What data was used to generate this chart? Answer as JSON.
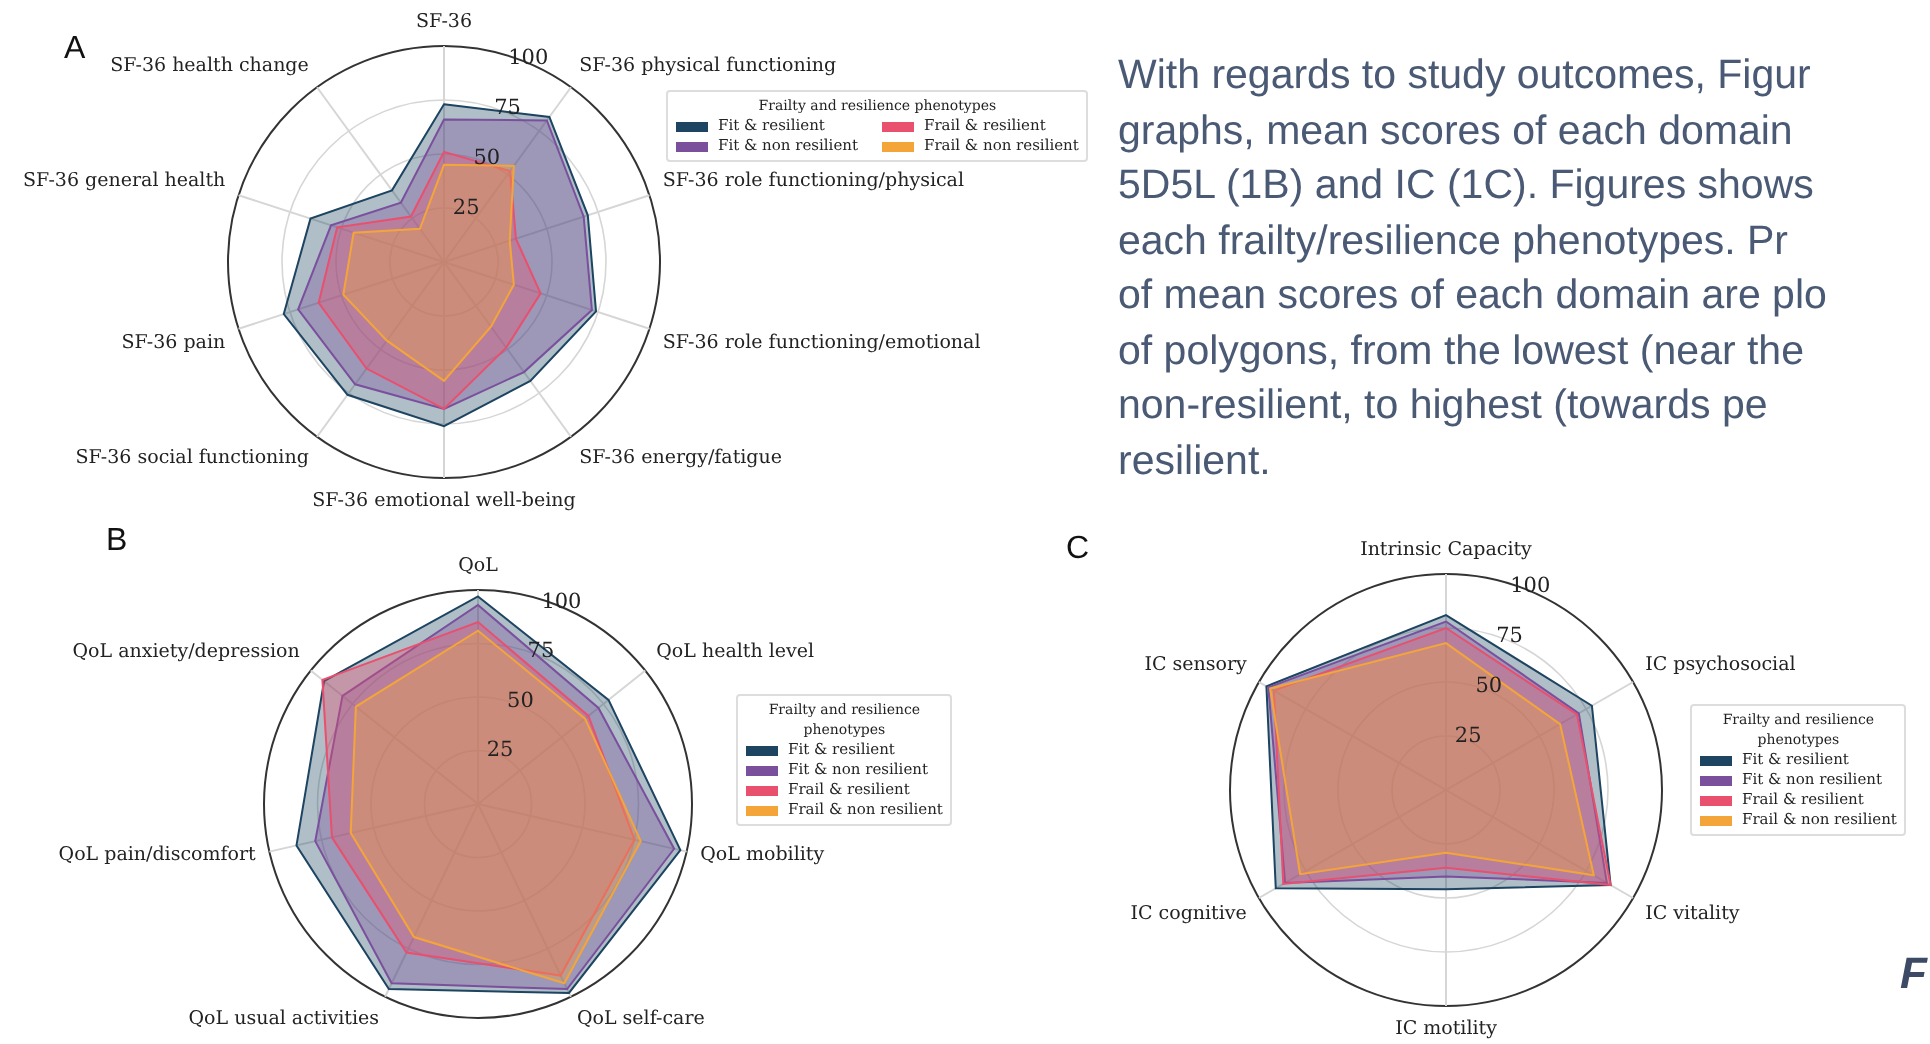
{
  "chart_data": [
    {
      "type": "radar",
      "title": "A",
      "categories": [
        "SF-36",
        "SF-36 physical functioning",
        "SF-36 role functioning/physical",
        "SF-36 role functioning/emotional",
        "SF-36 energy/fatigue",
        "SF-36 emotional well-being",
        "SF-36 social functioning",
        "SF-36 pain",
        "SF-36 general health",
        "SF-36 health change"
      ],
      "series": [
        {
          "name": "Fit & resilient",
          "color": "#1d4461",
          "values": [
            73,
            83,
            70,
            74,
            68,
            76,
            76,
            78,
            65,
            41
          ]
        },
        {
          "name": "Fit & non resilient",
          "color": "#7a4f9c",
          "values": [
            66,
            81,
            68,
            72,
            63,
            68,
            70,
            71,
            55,
            34
          ]
        },
        {
          "name": "Frail & resilient",
          "color": "#e8506e",
          "values": [
            51,
            52,
            35,
            47,
            49,
            68,
            61,
            61,
            52,
            26
          ]
        },
        {
          "name": "Frail & non resilient",
          "color": "#f4a53a",
          "values": [
            45,
            55,
            32,
            34,
            37,
            55,
            45,
            49,
            44,
            19
          ]
        }
      ],
      "ylim": [
        0,
        100
      ],
      "yticks": [
        25,
        50,
        75,
        100
      ],
      "grid": true,
      "marker": "none",
      "legend": "top right",
      "legend_title": "Frailty and resilience phenotypes"
    },
    {
      "type": "radar",
      "title": "B",
      "categories": [
        "QoL",
        "QoL health level",
        "QoL mobility",
        "QoL self-care",
        "QoL usual activities",
        "QoL pain/discomfort",
        "QoL anxiety/depression"
      ],
      "series": [
        {
          "name": "Fit & resilient",
          "color": "#1d4461",
          "values": [
            97,
            78,
            97,
            98,
            96,
            87,
            92
          ]
        },
        {
          "name": "Fit & non resilient",
          "color": "#7a4f9c",
          "values": [
            93,
            72,
            94,
            96,
            93,
            78,
            81
          ]
        },
        {
          "name": "Frail & resilient",
          "color": "#e8506e",
          "values": [
            85,
            66,
            75,
            89,
            77,
            70,
            93
          ]
        },
        {
          "name": "Frail & non resilient",
          "color": "#f4a53a",
          "values": [
            81,
            64,
            78,
            93,
            69,
            61,
            73
          ]
        }
      ],
      "ylim": [
        0,
        100
      ],
      "yticks": [
        25,
        50,
        75,
        100
      ],
      "grid": true,
      "marker": "none",
      "legend": "right",
      "legend_title": "Frailty and resilience phenotypes"
    },
    {
      "type": "radar",
      "title": "C",
      "categories": [
        "Intrinsic Capacity",
        "IC psychosocial",
        "IC vitality",
        "IC motility",
        "IC cognitive",
        "IC sensory"
      ],
      "series": [
        {
          "name": "Fit & resilient",
          "color": "#1d4461",
          "values": [
            81,
            78,
            88,
            46,
            91,
            96
          ]
        },
        {
          "name": "Fit & non resilient",
          "color": "#7a4f9c",
          "values": [
            78,
            71,
            86,
            40,
            86,
            95
          ]
        },
        {
          "name": "Frail & resilient",
          "color": "#e8506e",
          "values": [
            75,
            70,
            88,
            36,
            87,
            92
          ]
        },
        {
          "name": "Frail & non resilient",
          "color": "#f4a53a",
          "values": [
            68,
            61,
            79,
            29,
            78,
            94
          ]
        }
      ],
      "ylim": [
        0,
        100
      ],
      "yticks": [
        25,
        50,
        75,
        100
      ],
      "grid": true,
      "marker": "none",
      "legend": "right",
      "legend_title": "Frailty and resilience phenotypes"
    },
    {
      "type": "other",
      "annotations": [
        "With regards to study outcomes, Figur",
        "graphs, mean scores of each domain",
        "5D5L (1B) and IC (1C). Figures shows",
        "each frailty/resilience phenotypes. Pr",
        "of mean scores of each domain are plo",
        "of polygons, from the lowest (near the",
        "non-resilient, to highest (towards pe",
        "resilient."
      ]
    },
    {
      "type": "other",
      "title": "F"
    }
  ]
}
